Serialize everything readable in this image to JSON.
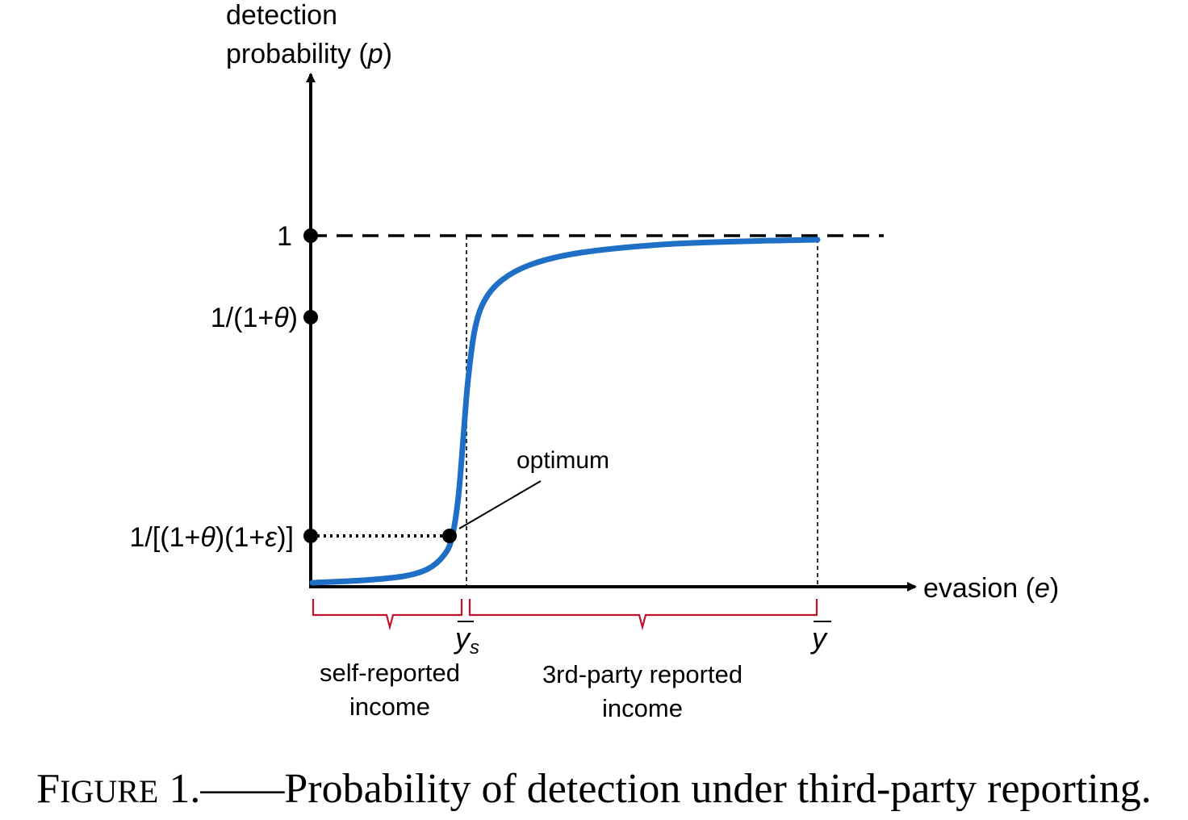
{
  "diagram": {
    "y_axis_label_line1": "detection",
    "y_axis_label_line2_prefix": "probability (",
    "y_axis_label_var": "p",
    "y_axis_label_suffix": ")",
    "x_axis_label_prefix": "evasion (",
    "x_axis_label_var": "e",
    "x_axis_label_suffix": ")",
    "tick_one": "1",
    "tick_theta": {
      "pre": "1/(1+",
      "var": "θ",
      "post": ")"
    },
    "tick_theta_eps": {
      "pre": "1/[(1+",
      "var1": "θ",
      "mid": ")(1+",
      "var2": "ε",
      "post": ")]"
    },
    "x_mark_ys": {
      "base": "y",
      "sub": "s"
    },
    "x_mark_y": {
      "base": "y"
    },
    "optimum_label": "optimum",
    "brace_left_label_line1": "self-reported",
    "brace_left_label_line2": "income",
    "brace_right_label_line1": "3rd-party reported",
    "brace_right_label_line2": "income",
    "colors": {
      "curve": "#1f6fc6",
      "brace": "#c0102a",
      "axis": "#000000"
    }
  },
  "caption": {
    "figure_word_first": "F",
    "figure_word_rest": "IGURE",
    "figure_number": "1.",
    "text": "——Probability of detection under third-party reporting."
  }
}
